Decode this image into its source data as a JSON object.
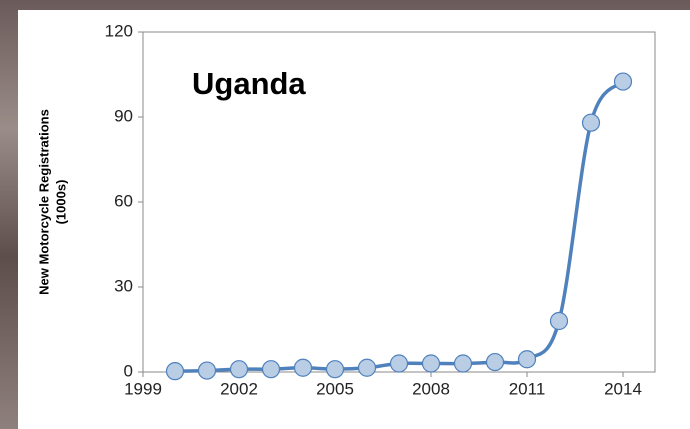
{
  "chart_data": {
    "type": "line",
    "title": "Uganda",
    "ylabel": [
      "New Motorcycle Registrations",
      "(1000s)"
    ],
    "x": [
      2000,
      2001,
      2002,
      2003,
      2004,
      2005,
      2006,
      2007,
      2008,
      2009,
      2010,
      2011,
      2012,
      2013,
      2014
    ],
    "series": [
      {
        "name": "Uganda",
        "color": "#4f81bd",
        "marker_fill": "#b9cde5",
        "values": [
          0.3,
          0.5,
          1,
          1,
          1.5,
          1,
          1.5,
          3,
          3,
          3,
          3.5,
          4.5,
          18,
          88,
          102.5
        ]
      }
    ],
    "xlim": [
      1999,
      2015
    ],
    "xticks": [
      1999,
      2002,
      2005,
      2008,
      2011,
      2014
    ],
    "ylim": [
      0,
      120
    ],
    "yticks": [
      0,
      30,
      60,
      90,
      120
    ],
    "smooth": true
  }
}
